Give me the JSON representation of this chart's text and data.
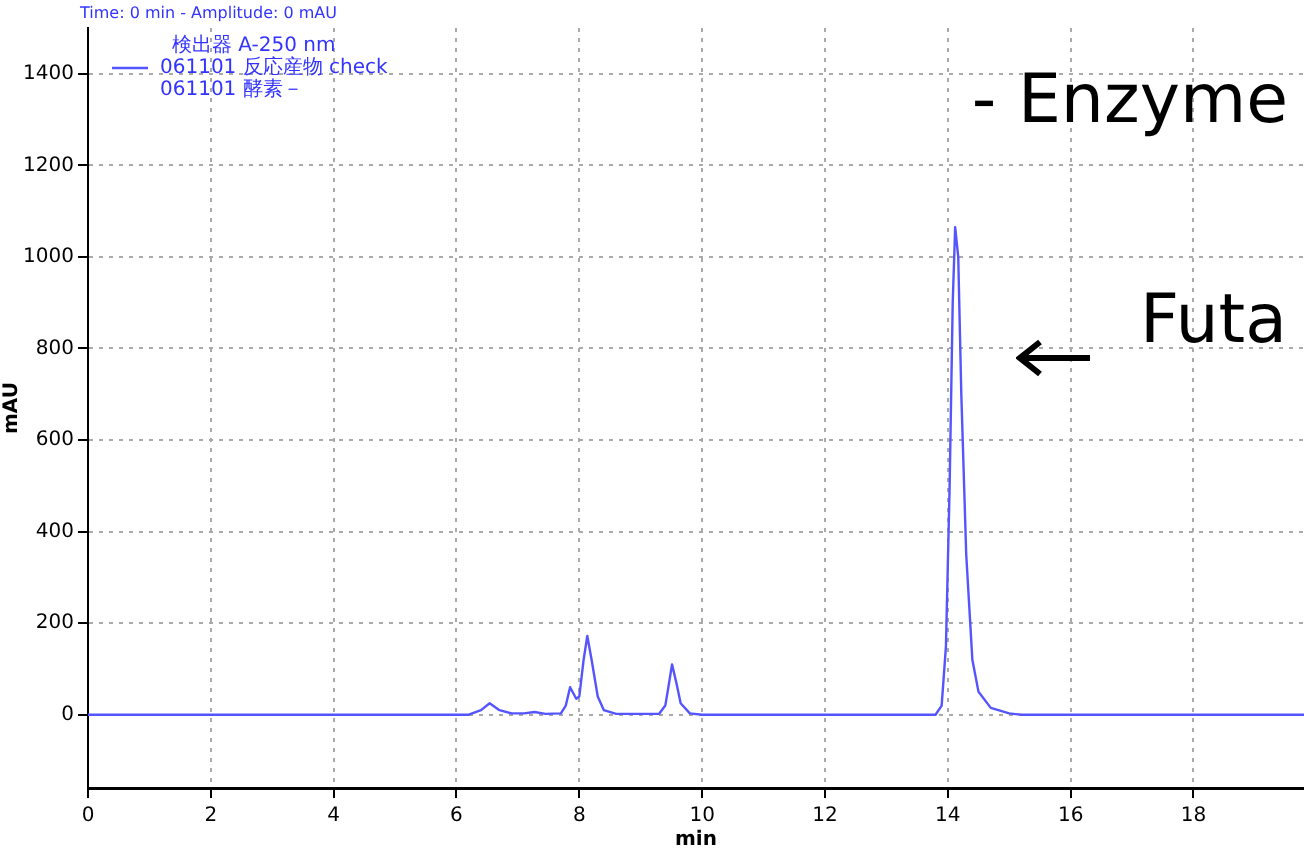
{
  "chart_data": {
    "type": "line",
    "xlabel": "min",
    "ylabel": "mAU",
    "legend_title": "検出器 A-250 nm",
    "annotations": [
      "Time: 0 min - Amplitude: 0 mAU",
      "061101 酵素－",
      "- Enzyme",
      "Futa"
    ],
    "xlim": [
      0,
      19.8
    ],
    "ylim": [
      -160,
      1500
    ],
    "xticks": [
      0,
      2,
      4,
      6,
      8,
      10,
      12,
      14,
      16,
      18
    ],
    "yticks": [
      0,
      200,
      400,
      600,
      800,
      1000,
      1200,
      1400
    ],
    "grid": true,
    "legend": "top left",
    "marker": "none",
    "line_style": "solid",
    "series": [
      {
        "name": "061101 反応産物 check",
        "color": "#5555ff",
        "x": [
          0,
          6.2,
          6.4,
          6.54,
          6.7,
          6.9,
          7.1,
          7.27,
          7.45,
          7.7,
          7.78,
          7.85,
          7.95,
          8.0,
          8.07,
          8.13,
          8.2,
          8.3,
          8.4,
          8.6,
          9.3,
          9.4,
          9.45,
          9.51,
          9.58,
          9.65,
          9.8,
          10,
          13.8,
          13.9,
          13.97,
          14.03,
          14.08,
          14.12,
          14.17,
          14.22,
          14.3,
          14.4,
          14.5,
          14.7,
          15.0,
          15.2,
          19.8
        ],
        "values": [
          0,
          0,
          10,
          25,
          10,
          3,
          3,
          6,
          2,
          3,
          20,
          60,
          35,
          40,
          120,
          172,
          120,
          40,
          10,
          2,
          2,
          20,
          60,
          110,
          70,
          25,
          3,
          0,
          0,
          20,
          150,
          500,
          900,
          1065,
          1000,
          700,
          350,
          120,
          50,
          15,
          3,
          0,
          0
        ]
      }
    ]
  }
}
